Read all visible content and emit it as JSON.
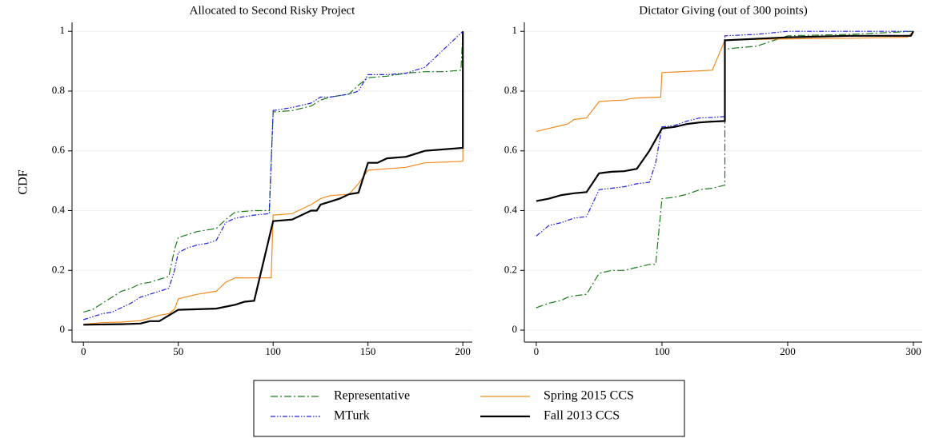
{
  "chart_data": [
    {
      "type": "line",
      "title": "Allocated to Second Risky Project",
      "ylabel": "CDF",
      "xlim": [
        -6,
        205
      ],
      "ylim": [
        -0.04,
        1.03
      ],
      "xticks": [
        0,
        50,
        100,
        150,
        200
      ],
      "yticks": [
        0,
        0.2,
        0.4,
        0.6,
        0.8,
        1
      ],
      "grid": true,
      "series": [
        {
          "name": "Representative",
          "color": "#1a7a1a",
          "style": "dashdot",
          "x": [
            0,
            5,
            10,
            15,
            20,
            25,
            30,
            35,
            40,
            45,
            48,
            50,
            55,
            60,
            65,
            70,
            75,
            80,
            90,
            98,
            100,
            110,
            120,
            125,
            130,
            140,
            145,
            150,
            160,
            170,
            180,
            190,
            199,
            200
          ],
          "values": [
            0.06,
            0.07,
            0.09,
            0.11,
            0.13,
            0.14,
            0.155,
            0.16,
            0.17,
            0.18,
            0.27,
            0.31,
            0.32,
            0.33,
            0.335,
            0.34,
            0.37,
            0.395,
            0.4,
            0.4,
            0.73,
            0.735,
            0.75,
            0.77,
            0.78,
            0.79,
            0.82,
            0.845,
            0.85,
            0.86,
            0.865,
            0.865,
            0.87,
            1.0
          ]
        },
        {
          "name": "MTurk",
          "color": "#2020dd",
          "style": "dashdotdot",
          "x": [
            0,
            5,
            10,
            15,
            20,
            25,
            30,
            35,
            40,
            45,
            48,
            50,
            55,
            60,
            65,
            70,
            75,
            80,
            90,
            98,
            100,
            110,
            120,
            125,
            130,
            140,
            145,
            150,
            160,
            170,
            180,
            190,
            200
          ],
          "values": [
            0.035,
            0.045,
            0.055,
            0.06,
            0.075,
            0.09,
            0.11,
            0.12,
            0.13,
            0.14,
            0.2,
            0.26,
            0.275,
            0.285,
            0.29,
            0.3,
            0.36,
            0.375,
            0.385,
            0.39,
            0.735,
            0.745,
            0.76,
            0.78,
            0.78,
            0.79,
            0.8,
            0.855,
            0.855,
            0.86,
            0.88,
            0.94,
            1.0
          ]
        },
        {
          "name": "Spring 2015 CCS",
          "color": "#f28a1e",
          "style": "solid",
          "x": [
            0,
            10,
            20,
            30,
            35,
            40,
            45,
            48,
            50,
            60,
            70,
            75,
            80,
            90,
            99,
            100,
            110,
            120,
            125,
            130,
            140,
            145,
            150,
            160,
            170,
            180,
            200,
            200
          ],
          "values": [
            0.02,
            0.025,
            0.027,
            0.032,
            0.04,
            0.05,
            0.055,
            0.07,
            0.105,
            0.12,
            0.13,
            0.16,
            0.175,
            0.175,
            0.175,
            0.385,
            0.39,
            0.42,
            0.44,
            0.45,
            0.455,
            0.49,
            0.535,
            0.54,
            0.545,
            0.56,
            0.565,
            1.0
          ]
        },
        {
          "name": "Fall 2013 CCS",
          "color": "#000000",
          "style": "thick",
          "x": [
            0,
            20,
            30,
            35,
            40,
            50,
            60,
            70,
            80,
            85,
            90,
            100,
            110,
            120,
            123,
            125,
            130,
            135,
            140,
            145,
            150,
            155,
            160,
            170,
            180,
            200,
            200
          ],
          "values": [
            0.018,
            0.02,
            0.022,
            0.03,
            0.03,
            0.068,
            0.07,
            0.072,
            0.085,
            0.095,
            0.098,
            0.365,
            0.37,
            0.4,
            0.4,
            0.42,
            0.43,
            0.44,
            0.455,
            0.46,
            0.56,
            0.56,
            0.575,
            0.58,
            0.6,
            0.61,
            1.0
          ]
        }
      ]
    },
    {
      "type": "line",
      "title": "Dictator Giving (out of 300 points)",
      "xlim": [
        -9.5,
        307
      ],
      "ylim": [
        -0.04,
        1.03
      ],
      "xticks": [
        0,
        100,
        200,
        300
      ],
      "yticks": [
        0,
        0.2,
        0.4,
        0.6,
        0.8,
        1
      ],
      "grid": true,
      "series": [
        {
          "name": "Representative",
          "color": "#1a7a1a",
          "style": "dashdot",
          "x": [
            0,
            10,
            20,
            25,
            30,
            40,
            50,
            60,
            70,
            80,
            90,
            95,
            100,
            110,
            120,
            130,
            140,
            145,
            150,
            150,
            160,
            175,
            200,
            250,
            300
          ],
          "values": [
            0.075,
            0.09,
            0.1,
            0.11,
            0.115,
            0.12,
            0.19,
            0.2,
            0.2,
            0.21,
            0.22,
            0.22,
            0.44,
            0.445,
            0.455,
            0.47,
            0.475,
            0.48,
            0.485,
            0.94,
            0.945,
            0.95,
            0.985,
            0.99,
            1.0
          ]
        },
        {
          "name": "MTurk",
          "color": "#2020dd",
          "style": "dashdotdot",
          "x": [
            0,
            10,
            20,
            30,
            40,
            50,
            60,
            70,
            80,
            90,
            95,
            100,
            110,
            120,
            130,
            140,
            150,
            150,
            175,
            200,
            250,
            300
          ],
          "values": [
            0.315,
            0.35,
            0.36,
            0.375,
            0.38,
            0.47,
            0.475,
            0.48,
            0.49,
            0.495,
            0.56,
            0.68,
            0.685,
            0.7,
            0.71,
            0.712,
            0.715,
            0.985,
            0.99,
            1.0,
            1.0,
            1.0
          ]
        },
        {
          "name": "Spring 2015 CCS",
          "color": "#f28a1e",
          "style": "solid",
          "x": [
            0,
            10,
            20,
            25,
            30,
            40,
            50,
            60,
            70,
            75,
            80,
            99,
            100,
            110,
            120,
            130,
            140,
            150,
            160,
            200,
            250,
            295,
            300
          ],
          "values": [
            0.665,
            0.675,
            0.685,
            0.69,
            0.705,
            0.71,
            0.765,
            0.768,
            0.77,
            0.775,
            0.777,
            0.78,
            0.862,
            0.864,
            0.866,
            0.868,
            0.87,
            0.97,
            0.972,
            0.975,
            0.977,
            0.98,
            1.0
          ]
        },
        {
          "name": "Fall 2013 CCS",
          "color": "#000000",
          "style": "thick",
          "x": [
            0,
            10,
            20,
            30,
            40,
            50,
            60,
            70,
            80,
            90,
            100,
            110,
            120,
            130,
            140,
            150,
            150,
            200,
            250,
            298,
            300
          ],
          "values": [
            0.432,
            0.44,
            0.452,
            0.458,
            0.462,
            0.525,
            0.53,
            0.532,
            0.54,
            0.6,
            0.675,
            0.68,
            0.69,
            0.695,
            0.698,
            0.7,
            0.97,
            0.98,
            0.985,
            0.985,
            1.0
          ]
        }
      ]
    }
  ]
}
